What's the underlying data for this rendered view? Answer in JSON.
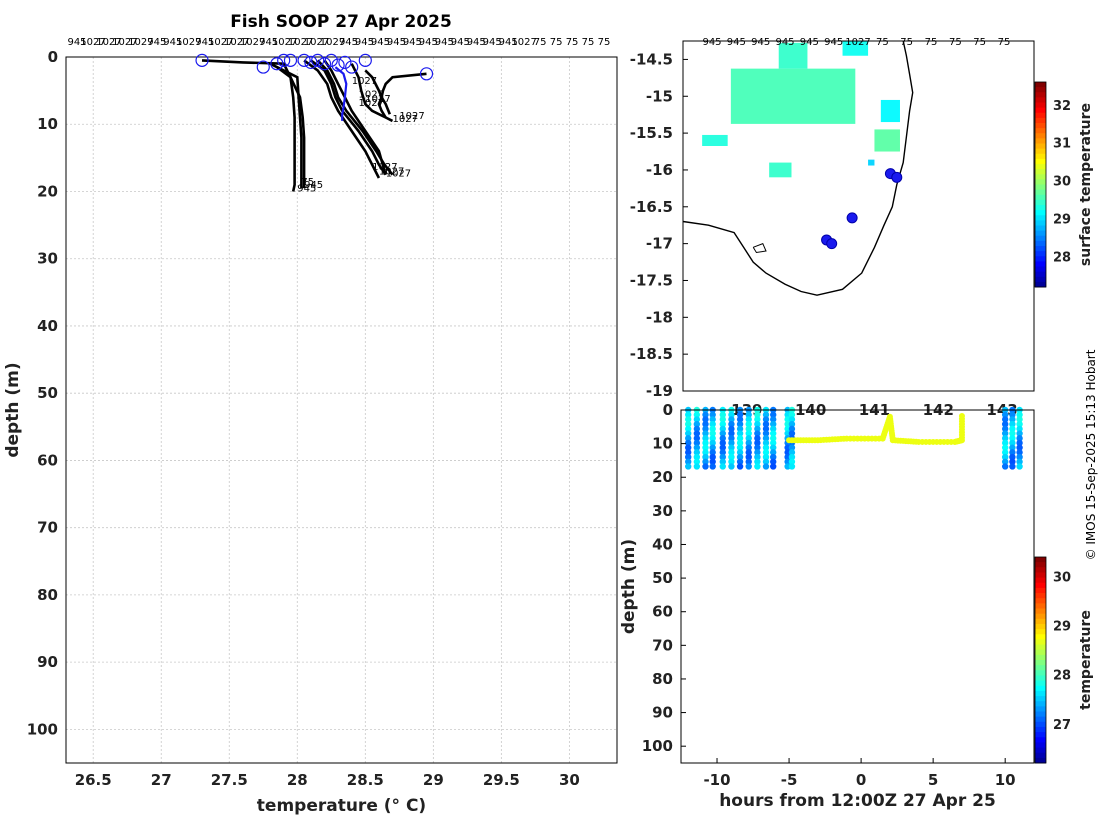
{
  "title": "Fish SOOP 27 Apr 2025",
  "credit": "© IMOS 15-Sep-2025 15:13 Hobart",
  "colors": {
    "profile": "#000000",
    "highlight": "#1a1aee",
    "frame": "#000000"
  },
  "chart_data": [
    {
      "type": "line",
      "name": "profiles",
      "xlabel": "temperature (° C)",
      "ylabel": "depth (m)",
      "xlim": [
        26.3,
        30.35
      ],
      "ylim": [
        105,
        0
      ],
      "y_reversed": true,
      "grid": true,
      "xticks": [
        "26.5",
        "27",
        "27.5",
        "28",
        "28.5",
        "29",
        "29.5",
        "30"
      ],
      "yticks": [
        "0",
        "10",
        "20",
        "30",
        "40",
        "50",
        "60",
        "70",
        "80",
        "90",
        "100"
      ],
      "top_labels": [
        "945",
        "1027",
        "1027",
        "1027",
        "1027",
        "945",
        "945",
        "1027",
        "945",
        "1027",
        "1027",
        "1027",
        "945",
        "1027",
        "1027",
        "1027",
        "1027",
        "945",
        "945",
        "945",
        "945",
        "945",
        "945",
        "945",
        "945",
        "945",
        "945",
        "945",
        "1027",
        "75",
        "75",
        "75",
        "75",
        "75"
      ],
      "series": [
        {
          "name": "945",
          "highlight": false,
          "x": [
            27.3,
            27.6,
            27.9,
            27.95,
            27.97,
            27.98,
            27.98,
            27.98,
            27.98,
            27.98,
            27.97
          ],
          "y": [
            0.5,
            0.8,
            1,
            3,
            6,
            9,
            12,
            15,
            17,
            19,
            20
          ]
        },
        {
          "name": "945",
          "highlight": false,
          "x": [
            27.8,
            27.9,
            28.0,
            28.01,
            28.02,
            28.03,
            28.03,
            28.03,
            28.03
          ],
          "y": [
            1,
            2,
            3,
            6,
            9,
            12,
            15,
            18,
            19.5
          ]
        },
        {
          "name": "945",
          "highlight": false,
          "x": [
            27.85,
            27.95,
            28.02,
            28.04,
            28.05,
            28.05,
            28.05,
            28.05
          ],
          "y": [
            1.5,
            3,
            6,
            9,
            12,
            15,
            18,
            19.5
          ]
        },
        {
          "name": "1027",
          "highlight": false,
          "x": [
            28.05,
            28.15,
            28.22,
            28.25,
            28.3,
            28.4,
            28.5,
            28.55,
            28.6
          ],
          "y": [
            0.5,
            2,
            4,
            6,
            8,
            11,
            14,
            16,
            18
          ]
        },
        {
          "name": "1027",
          "highlight": false,
          "x": [
            28.1,
            28.2,
            28.25,
            28.28,
            28.33,
            28.45,
            28.55,
            28.6,
            28.65
          ],
          "y": [
            0.5,
            2,
            4,
            6,
            8,
            11,
            14,
            16,
            17.5
          ]
        },
        {
          "name": "1027",
          "highlight": false,
          "x": [
            28.15,
            28.22,
            28.27,
            28.3,
            28.36,
            28.48,
            28.58,
            28.64,
            28.7
          ],
          "y": [
            0.5,
            2,
            4,
            6,
            8,
            11,
            14,
            16,
            17.5
          ]
        },
        {
          "name": "1027",
          "highlight": false,
          "x": [
            28.2,
            28.25,
            28.3,
            28.35,
            28.4,
            28.5,
            28.6,
            28.65
          ],
          "y": [
            0.5,
            2,
            4,
            6,
            8,
            11,
            14,
            17.5
          ]
        },
        {
          "name": "1027",
          "highlight": false,
          "x": [
            28.4,
            28.45,
            28.47,
            28.5,
            28.55,
            28.65,
            28.7
          ],
          "y": [
            1,
            3,
            5,
            7,
            8,
            9,
            9.5
          ]
        },
        {
          "name": "1027",
          "highlight": false,
          "x": [
            28.5,
            28.55,
            28.6,
            28.62,
            28.65,
            28.68
          ],
          "y": [
            2,
            3,
            5,
            6,
            7,
            8.5
          ]
        },
        {
          "name": "1027",
          "highlight": false,
          "x": [
            28.95,
            28.7,
            28.65,
            28.63,
            28.62,
            28.6,
            28.62,
            28.65
          ],
          "y": [
            2.5,
            3,
            4,
            5,
            6,
            7,
            8,
            9
          ]
        },
        {
          "name": "1027",
          "highlight": true,
          "x": [
            28.28,
            28.34,
            28.36,
            28.35,
            28.34,
            28.33,
            28.33
          ],
          "y": [
            1.5,
            2.5,
            4,
            6,
            7.5,
            8.5,
            9.5
          ]
        }
      ],
      "markers": {
        "x": [
          27.3,
          27.75,
          27.85,
          27.9,
          27.95,
          28.05,
          28.1,
          28.15,
          28.2,
          28.25,
          28.3,
          28.35,
          28.4,
          28.5,
          28.95
        ],
        "y": [
          0.5,
          1.5,
          1,
          0.5,
          0.5,
          0.5,
          0.8,
          0.5,
          1,
          0.5,
          1.2,
          0.8,
          1.5,
          0.5,
          2.5
        ]
      },
      "annotations": [
        {
          "text": "945",
          "x": 28.05,
          "y": 19.5
        },
        {
          "text": "945",
          "x": 28.0,
          "y": 20
        },
        {
          "text": "75",
          "x": 28.03,
          "y": 19
        },
        {
          "text": "1027",
          "x": 28.6,
          "y": 17.5
        },
        {
          "text": "1027",
          "x": 28.65,
          "y": 17.8
        },
        {
          "text": "1027",
          "x": 28.55,
          "y": 16.8
        },
        {
          "text": "1027",
          "x": 28.75,
          "y": 9.2
        },
        {
          "text": "1027",
          "x": 28.7,
          "y": 9.7
        },
        {
          "text": "1027",
          "x": 28.4,
          "y": 4
        },
        {
          "text": "1027",
          "x": 28.45,
          "y": 6
        },
        {
          "text": "1027",
          "x": 28.5,
          "y": 6.7
        },
        {
          "text": "1027",
          "x": 28.45,
          "y": 7.3
        }
      ]
    },
    {
      "type": "heatmap",
      "name": "map",
      "colorbar_label": "surface temperature",
      "clim": [
        27.2,
        32.6
      ],
      "colorbar_ticks": [
        "32",
        "31",
        "30",
        "29",
        "28"
      ],
      "xlim": [
        138.0,
        143.5
      ],
      "ylim": [
        -19.0,
        -14.25
      ],
      "yticks": [
        "-14.5",
        "-15",
        "-15.5",
        "-16",
        "-16.5",
        "-17",
        "-17.5",
        "-18",
        "-18.5",
        "-19"
      ],
      "xticks": [
        "139",
        "140",
        "141",
        "142",
        "143"
      ],
      "blocks": [
        {
          "lon": 138.75,
          "lat": -15.0,
          "w": 1.95,
          "h": 0.75,
          "v": 29.6
        },
        {
          "lon": 139.5,
          "lat": -14.45,
          "w": 0.45,
          "h": 0.35,
          "v": 29.5
        },
        {
          "lon": 140.5,
          "lat": -14.35,
          "w": 0.4,
          "h": 0.2,
          "v": 29.3
        },
        {
          "lon": 138.3,
          "lat": -15.6,
          "w": 0.4,
          "h": 0.15,
          "v": 29.4
        },
        {
          "lon": 141.0,
          "lat": -15.6,
          "w": 0.4,
          "h": 0.3,
          "v": 29.7
        },
        {
          "lon": 141.1,
          "lat": -15.2,
          "w": 0.3,
          "h": 0.3,
          "v": 29.2
        },
        {
          "lon": 139.35,
          "lat": -16.0,
          "w": 0.35,
          "h": 0.2,
          "v": 29.5
        },
        {
          "lon": 140.9,
          "lat": -15.9,
          "w": 0.1,
          "h": 0.08,
          "v": 29.0
        }
      ],
      "track_points": [
        {
          "lon": 141.25,
          "lat": -16.05
        },
        {
          "lon": 141.35,
          "lat": -16.1
        },
        {
          "lon": 140.65,
          "lat": -16.65
        },
        {
          "lon": 140.25,
          "lat": -16.95
        },
        {
          "lon": 140.33,
          "lat": -17.0
        }
      ],
      "top_labels": [
        "945",
        "945",
        "945",
        "945",
        "945",
        "945",
        "1027",
        "75",
        "75",
        "75",
        "75",
        "75",
        "75"
      ]
    },
    {
      "type": "scatter",
      "name": "section",
      "xlabel": "hours from 12:00Z 27 Apr 25",
      "ylabel": "depth (m)",
      "colorbar_label": "temperature",
      "clim": [
        26.2,
        30.4
      ],
      "colorbar_ticks": [
        "30",
        "29",
        "28",
        "27"
      ],
      "xlim": [
        -12.5,
        12.0
      ],
      "ylim": [
        105,
        0
      ],
      "xticks": [
        "-10",
        "-5",
        "0",
        "5",
        "10"
      ],
      "yticks": [
        "0",
        "10",
        "20",
        "30",
        "40",
        "50",
        "60",
        "70",
        "80",
        "90",
        "100"
      ],
      "casts_x": [
        -12.0,
        -11.4,
        -10.8,
        -10.3,
        -9.6,
        -9.0,
        -8.4,
        -7.8,
        -7.2,
        -6.6,
        -6.1,
        -5.1,
        -4.8,
        10.0,
        10.5,
        11.0
      ],
      "cast_bottom": 18,
      "tow": {
        "x": [
          -5.0,
          -3.0,
          -1.0,
          1.5,
          2.0,
          2.2,
          4.0,
          6.5,
          7.0,
          7.0
        ],
        "y": [
          9.0,
          9.0,
          8.5,
          8.5,
          2.0,
          9.0,
          9.5,
          9.5,
          9.0,
          1.0
        ]
      }
    }
  ]
}
